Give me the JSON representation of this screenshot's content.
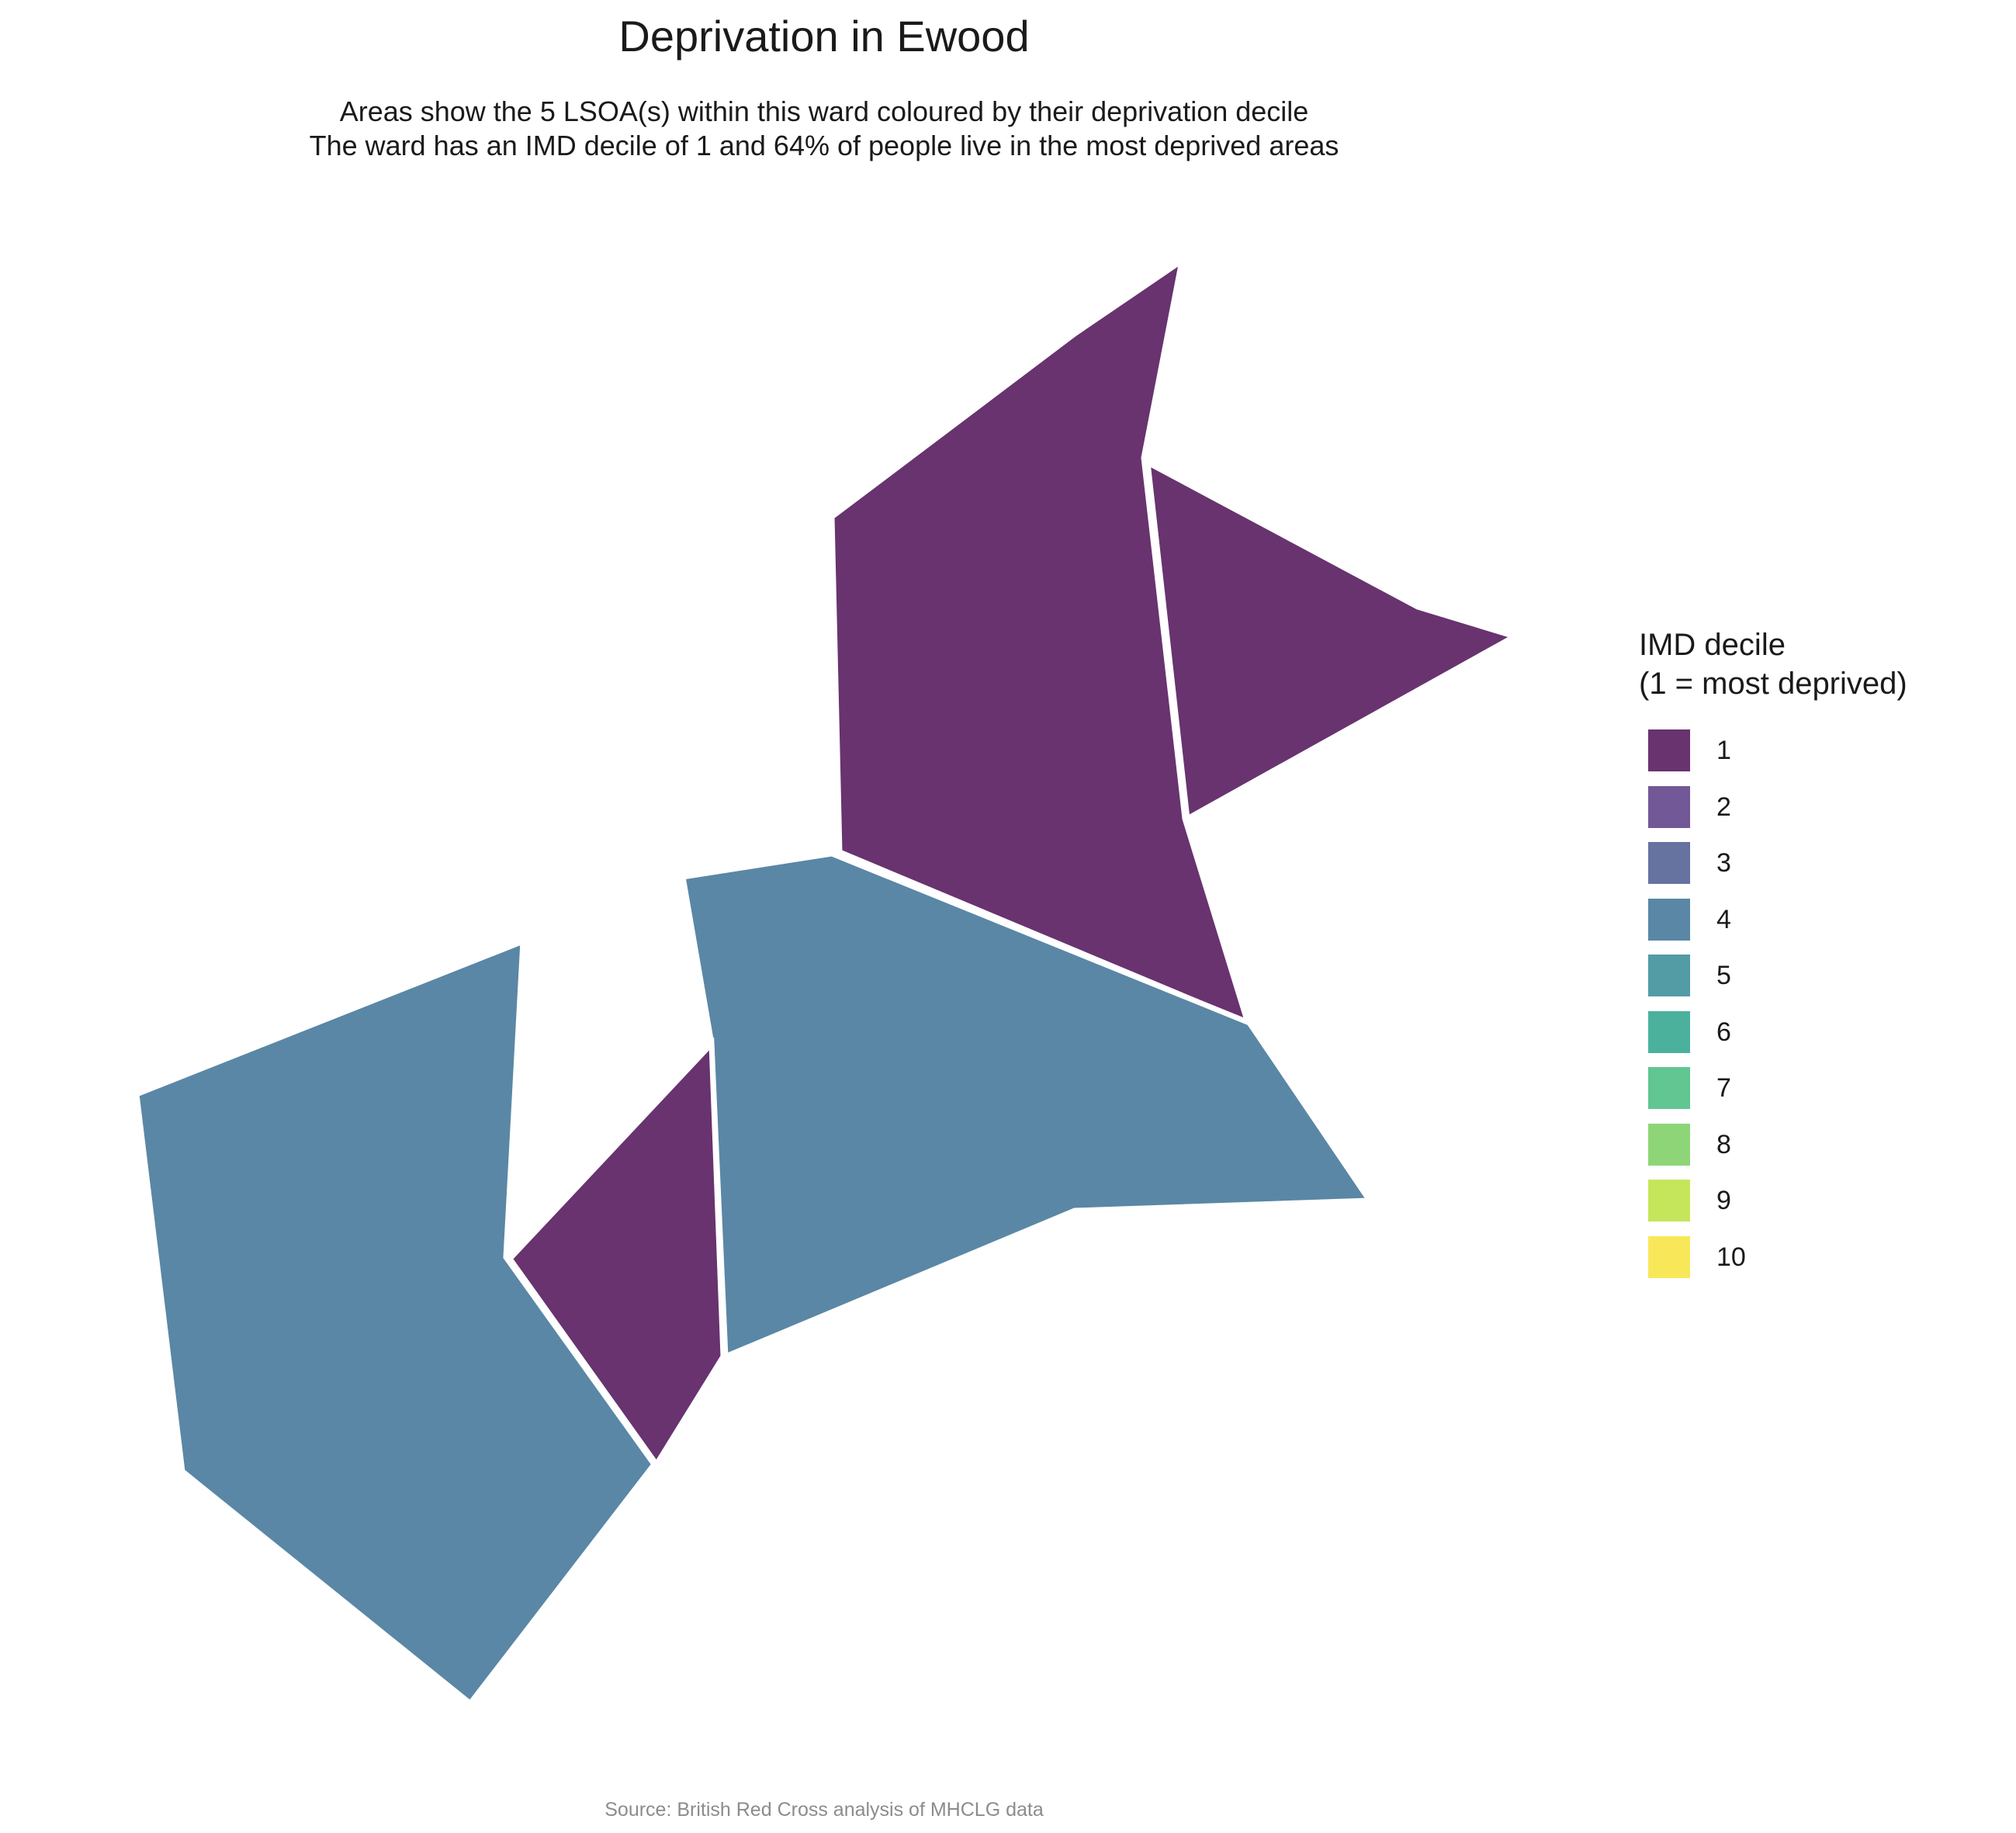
{
  "title": "Deprivation in Ewood",
  "subtitle_line1": "Areas show the 5 LSOA(s) within this ward coloured by their deprivation decile",
  "subtitle_line2": "The ward has an IMD decile of 1 and 64% of people live in the most deprived areas",
  "legend": {
    "title_line1": "IMD decile",
    "title_line2": "(1 = most deprived)",
    "items": [
      {
        "label": "1",
        "color": "#68336f"
      },
      {
        "label": "2",
        "color": "#725897"
      },
      {
        "label": "3",
        "color": "#6673a0"
      },
      {
        "label": "4",
        "color": "#5a87a5"
      },
      {
        "label": "5",
        "color": "#539ba5"
      },
      {
        "label": "6",
        "color": "#4bb19d"
      },
      {
        "label": "7",
        "color": "#61c691"
      },
      {
        "label": "8",
        "color": "#8ed577"
      },
      {
        "label": "9",
        "color": "#c5e65a"
      },
      {
        "label": "10",
        "color": "#f8e859"
      }
    ]
  },
  "map": {
    "areas": [
      {
        "name": "north-central",
        "decile": 1
      },
      {
        "name": "north-east",
        "decile": 1
      },
      {
        "name": "central",
        "decile": 4
      },
      {
        "name": "south-west",
        "decile": 4
      },
      {
        "name": "south-central",
        "decile": 1
      }
    ]
  },
  "source": "Source: British Red Cross analysis of MHCLG data"
}
